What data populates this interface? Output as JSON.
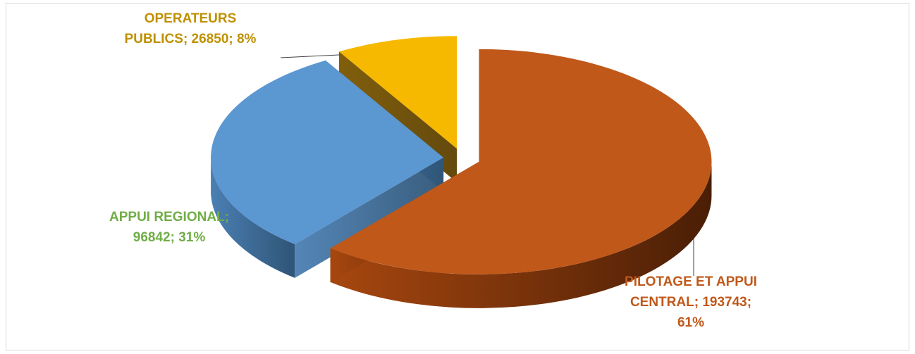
{
  "chart_data": {
    "type": "pie",
    "style": "3d-exploded",
    "legend": "none",
    "slices": [
      {
        "category": "PILOTAGE ET APPUI CENTRAL",
        "value": 193743,
        "percent": 61,
        "color": "#c0581a",
        "label_lines": [
          "PILOTAGE ET APPUI",
          "CENTRAL; 193743;",
          "61%"
        ]
      },
      {
        "category": "APPUI REGIONAL",
        "value": 96842,
        "percent": 31,
        "color": "#5b97d1",
        "label_lines": [
          "APPUI REGIONAL;",
          "96842; 31%"
        ]
      },
      {
        "category": "OPERATEURS PUBLICS",
        "value": 26850,
        "percent": 8,
        "color": "#f6b900",
        "label_lines": [
          "OPERATEURS",
          "PUBLICS; 26850; 8%"
        ]
      }
    ],
    "label_colors": {
      "PILOTAGE ET APPUI CENTRAL": "#c0581a",
      "APPUI REGIONAL": "#70ad47",
      "OPERATEURS PUBLICS": "#bf9000"
    }
  }
}
